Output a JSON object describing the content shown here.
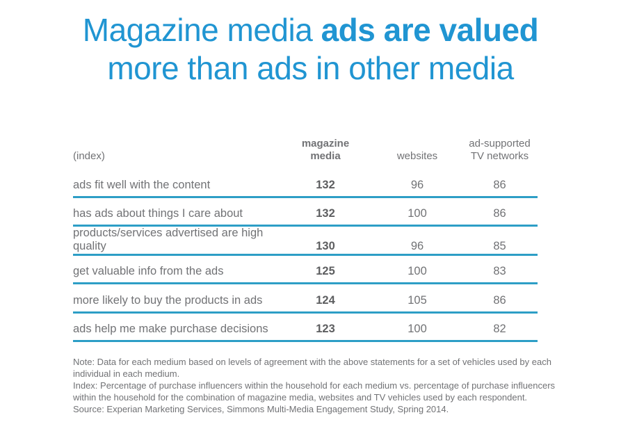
{
  "title": {
    "line1_light": "Magazine media ",
    "line1_bold": "ads are valued",
    "line2": "more than ads in other media",
    "color": "#2095d2"
  },
  "table": {
    "index_label": "(index)",
    "columns": [
      "magazine\nmedia",
      "websites",
      "ad-supported\nTV networks"
    ],
    "rule_color": "#2d9ec6",
    "rows": [
      {
        "statement": "ads fit well with the content",
        "values": [
          132,
          96,
          86
        ]
      },
      {
        "statement": "has ads about things I care about",
        "values": [
          132,
          100,
          86
        ]
      },
      {
        "statement": "products/services advertised are high quality",
        "values": [
          130,
          96,
          85
        ]
      },
      {
        "statement": "get valuable info from the ads",
        "values": [
          125,
          100,
          83
        ]
      },
      {
        "statement": "more likely to buy the products in ads",
        "values": [
          124,
          105,
          86
        ]
      },
      {
        "statement": "ads help me make purchase decisions",
        "values": [
          123,
          100,
          82
        ]
      }
    ]
  },
  "notes": [
    "Note: Data for each medium based on levels of agreement with the above statements for a set of vehicles used by each individual in each medium.",
    "Index: Percentage of purchase influencers within the household for each medium vs. percentage of purchase influencers within the household for the combination of magazine media, websites and TV vehicles used by each respondent.",
    "Source: Experian Marketing Services, Simmons Multi-Media Engagement Study, Spring 2014."
  ],
  "chart_data": {
    "type": "table",
    "title": "Magazine media ads are valued more than ads in other media",
    "index_label": "(index)",
    "categories": [
      "ads fit well with the content",
      "has ads about things I care about",
      "products/services advertised are high quality",
      "get valuable info from the ads",
      "more likely to buy the products in ads",
      "ads help me make purchase decisions"
    ],
    "series": [
      {
        "name": "magazine media",
        "values": [
          132,
          132,
          130,
          125,
          124,
          123
        ]
      },
      {
        "name": "websites",
        "values": [
          96,
          100,
          96,
          100,
          105,
          100
        ]
      },
      {
        "name": "ad-supported TV networks",
        "values": [
          86,
          86,
          85,
          83,
          86,
          82
        ]
      }
    ],
    "notes": "Index values; magazine media column emphasized in bold"
  }
}
